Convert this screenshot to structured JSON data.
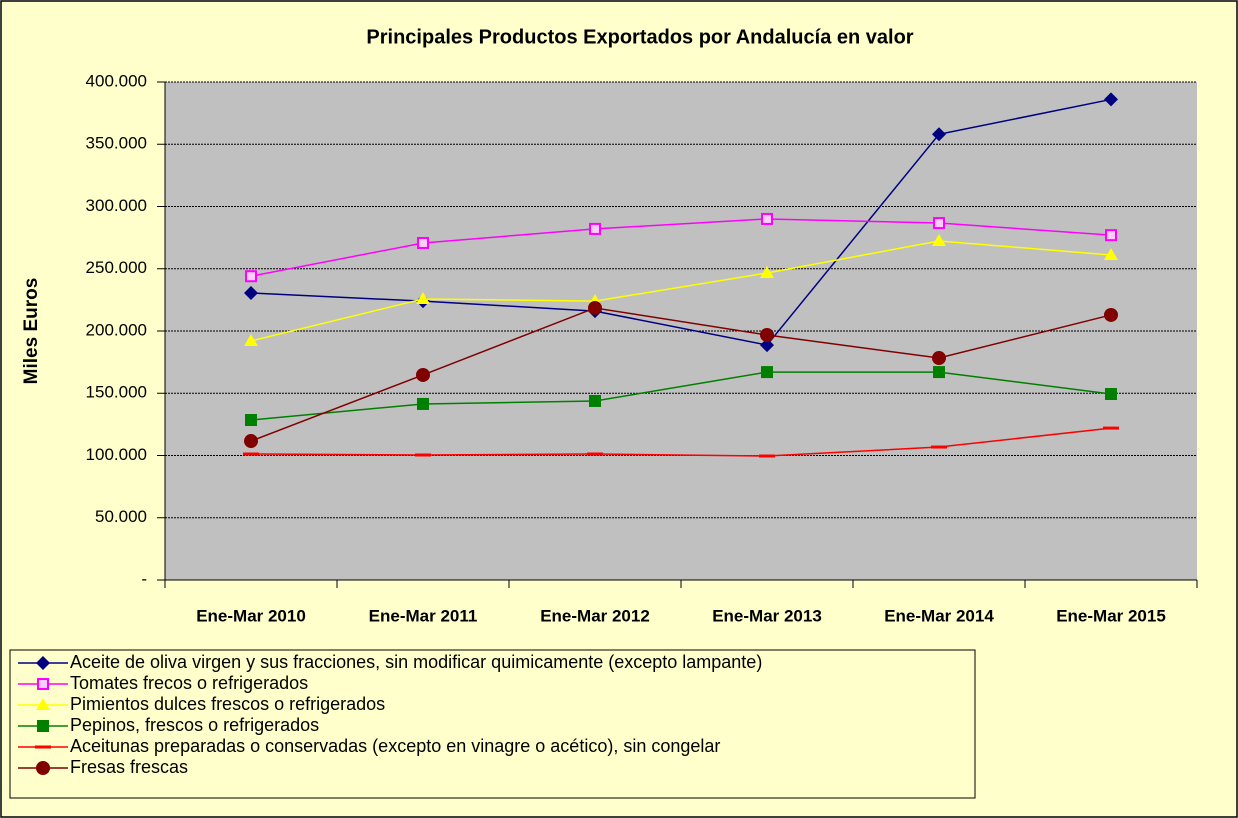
{
  "chart_data": {
    "type": "line",
    "title": "Principales Productos Exportados por Andalucía en valor",
    "y_label": "Miles Euros",
    "categories": [
      "Ene-Mar 2010",
      "Ene-Mar 2011",
      "Ene-Mar 2012",
      "Ene-Mar 2013",
      "Ene-Mar 2014",
      "Ene-Mar 2015"
    ],
    "ylim": [
      0,
      400000
    ],
    "yticks": [
      {
        "value": 0,
        "label": "-"
      },
      {
        "value": 50000,
        "label": "50.000"
      },
      {
        "value": 100000,
        "label": "100.000"
      },
      {
        "value": 150000,
        "label": "150.000"
      },
      {
        "value": 200000,
        "label": "200.000"
      },
      {
        "value": 250000,
        "label": "250.000"
      },
      {
        "value": 300000,
        "label": "300.000"
      },
      {
        "value": 350000,
        "label": "350.000"
      },
      {
        "value": 400000,
        "label": "400.000"
      }
    ],
    "grid": true,
    "legend": "bottom-left",
    "series": [
      {
        "name": "Aceite de oliva virgen y sus fracciones, sin modificar quimicamente (excepto lampante)",
        "color": "#000080",
        "marker": "diamond",
        "values": [
          230500,
          224000,
          216000,
          188700,
          358000,
          386000
        ]
      },
      {
        "name": "Tomates frecos o refrigerados",
        "color": "#ff00ff",
        "marker": "hollow-square",
        "values": [
          244000,
          270700,
          282000,
          290000,
          286700,
          277000
        ]
      },
      {
        "name": "Pimientos dulces frescos o refrigerados",
        "color": "#ffff00",
        "marker": "triangle",
        "values": [
          192000,
          225700,
          224000,
          246600,
          272300,
          261000
        ]
      },
      {
        "name": "Pepinos, frescos o refrigerados",
        "color": "#008000",
        "marker": "square",
        "values": [
          128500,
          141400,
          143800,
          167000,
          167000,
          149400
        ]
      },
      {
        "name": "Aceitunas preparadas o conservadas (excepto en vinagre o acético), sin congelar",
        "color": "#ff0000",
        "marker": "dash",
        "values": [
          101200,
          100400,
          101200,
          99600,
          106800,
          122000
        ]
      },
      {
        "name": "Fresas frescas",
        "color": "#800000",
        "marker": "circle",
        "values": [
          111600,
          164700,
          218500,
          196800,
          178300,
          212900
        ]
      }
    ]
  }
}
